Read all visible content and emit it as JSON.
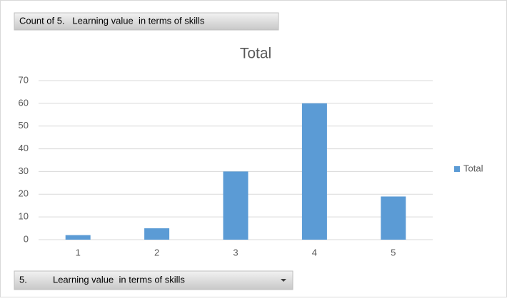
{
  "chart_data": {
    "type": "bar",
    "title": "Total",
    "value_field_button": "Count of 5.   Learning value  in terms of skills",
    "axis_field_button": "5.          Learning value  in terms of skills",
    "categories": [
      "1",
      "2",
      "3",
      "4",
      "5"
    ],
    "series": [
      {
        "name": "Total",
        "color": "#5b9bd5",
        "values": [
          2,
          5,
          30,
          60,
          19
        ]
      }
    ],
    "ylim": [
      0,
      70
    ],
    "yticks": [
      0,
      10,
      20,
      30,
      40,
      50,
      60,
      70
    ],
    "grid": true,
    "legend": "right"
  }
}
